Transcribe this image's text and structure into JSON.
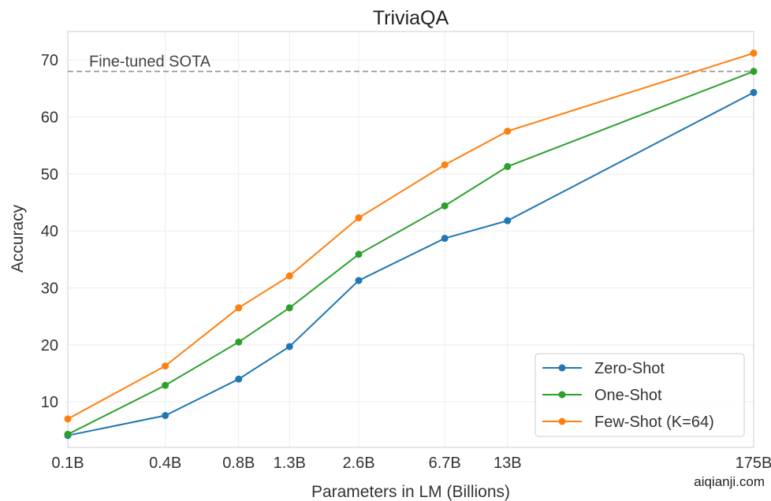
{
  "chart_data": {
    "type": "line",
    "title": "TriviaQA",
    "xlabel": "Parameters in LM (Billions)",
    "ylabel": "Accuracy",
    "x_scale": "log",
    "x": [
      0.125,
      0.35,
      0.76,
      1.3,
      2.7,
      6.7,
      13,
      175
    ],
    "categories": [
      "0.1B",
      "0.4B",
      "0.8B",
      "1.3B",
      "2.6B",
      "6.7B",
      "13B",
      "175B"
    ],
    "yticks": [
      10,
      20,
      30,
      40,
      50,
      60,
      70
    ],
    "ylim": [
      2,
      75
    ],
    "grid": true,
    "legend_position": "lower-right",
    "reference_line": {
      "label": "Fine-tuned SOTA",
      "value": 68.0,
      "color": "#999999"
    },
    "series": [
      {
        "name": "Zero-Shot",
        "color": "#1f77b4",
        "values": [
          4.1,
          7.6,
          14.0,
          19.7,
          31.3,
          38.7,
          41.8,
          64.3
        ]
      },
      {
        "name": "One-Shot",
        "color": "#2ca02c",
        "values": [
          4.3,
          12.9,
          20.5,
          26.5,
          35.9,
          44.4,
          51.3,
          68.0
        ]
      },
      {
        "name": "Few-Shot (K=64)",
        "color": "#ff7f0e",
        "values": [
          7.0,
          16.3,
          26.5,
          32.1,
          42.3,
          51.6,
          57.5,
          71.2
        ]
      }
    ]
  },
  "watermark": "aiqianji.com"
}
